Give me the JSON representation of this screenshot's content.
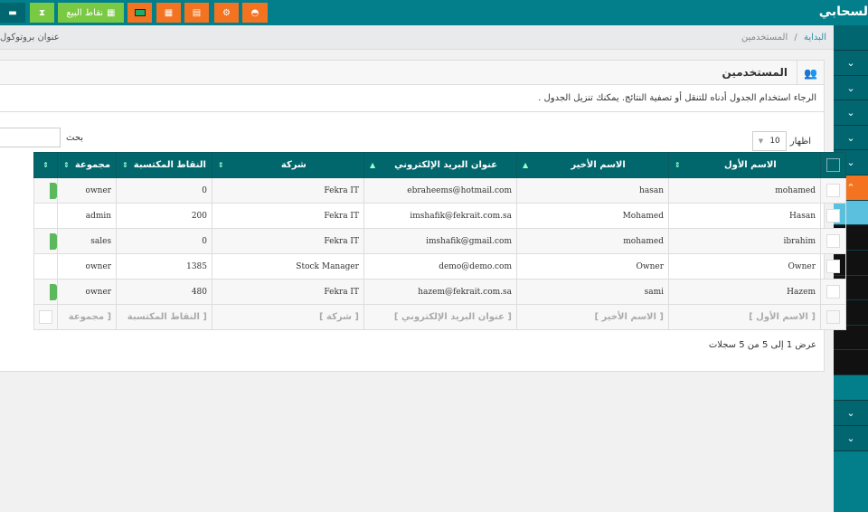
{
  "topbar": {
    "brand": "لسحابي",
    "pos_label": "نقاط البيع",
    "buttons": [
      {
        "icon": "window-icon",
        "color": "#016670"
      },
      {
        "icon": "hourglass-icon",
        "color": "#7ac943"
      },
      {
        "icon": "pos-grid-icon",
        "color": "#7ac943"
      },
      {
        "icon": "monitor-icon",
        "color": "#f47320"
      },
      {
        "icon": "calendar-icon",
        "color": "#f47320"
      },
      {
        "icon": "calculator-icon",
        "color": "#f47320"
      },
      {
        "icon": "cogs-icon",
        "color": "#f47320"
      },
      {
        "icon": "dashboard-icon",
        "color": "#f47320"
      }
    ]
  },
  "breadcrumb": {
    "home": "البداية",
    "separator": "/",
    "current": "المستخدمين",
    "left_text": "عنوان بروتوكول"
  },
  "panel": {
    "title": "المستخدمين",
    "description": "الرجاء استخدام الجدول أدناه للتنقل أو تصفية النتائج. يمكنك تنزيل الجدول .",
    "show_label": "اظهار",
    "page_size": "10",
    "search_label": "بحث",
    "info": "عرض 1 إلى 5 من 5 سجلات"
  },
  "table": {
    "headers": [
      "الاسم الأول",
      "الاسم الأخير",
      "عنوان البريد الإلكتروني",
      "شركة",
      "النقاط المكتسبة",
      "مجموعة"
    ],
    "rows": [
      [
        "mohamed",
        "hasan",
        "ebraheems@hotmail.com",
        "Fekra IT",
        "0",
        "owner"
      ],
      [
        "Hasan",
        "Mohamed",
        "imshafik@fekrait.com.sa",
        "Fekra IT",
        "200",
        "admin"
      ],
      [
        "ibrahim",
        "mohamed",
        "imshafik@gmail.com",
        "Fekra IT",
        "0",
        "sales"
      ],
      [
        "Owner",
        "Owner",
        "demo@demo.com",
        "Stock Manager",
        "1385",
        "owner"
      ],
      [
        "Hazem",
        "sami",
        "hazem@fekrait.com.sa",
        "Fekra IT",
        "480",
        "owner"
      ]
    ],
    "footer": [
      "[ الاسم الأول ]",
      "[ الاسم الأخير ]",
      "[ عنوان البريد الإلكتروني ]",
      "[ شركة ]",
      "[ النقاط المكتسبة",
      "[ مجموعة"
    ]
  },
  "colors": {
    "teal": "#027f8a",
    "header": "#02676d",
    "orange": "#f47320",
    "green": "#7ac943",
    "light_blue": "#5bc0de"
  }
}
